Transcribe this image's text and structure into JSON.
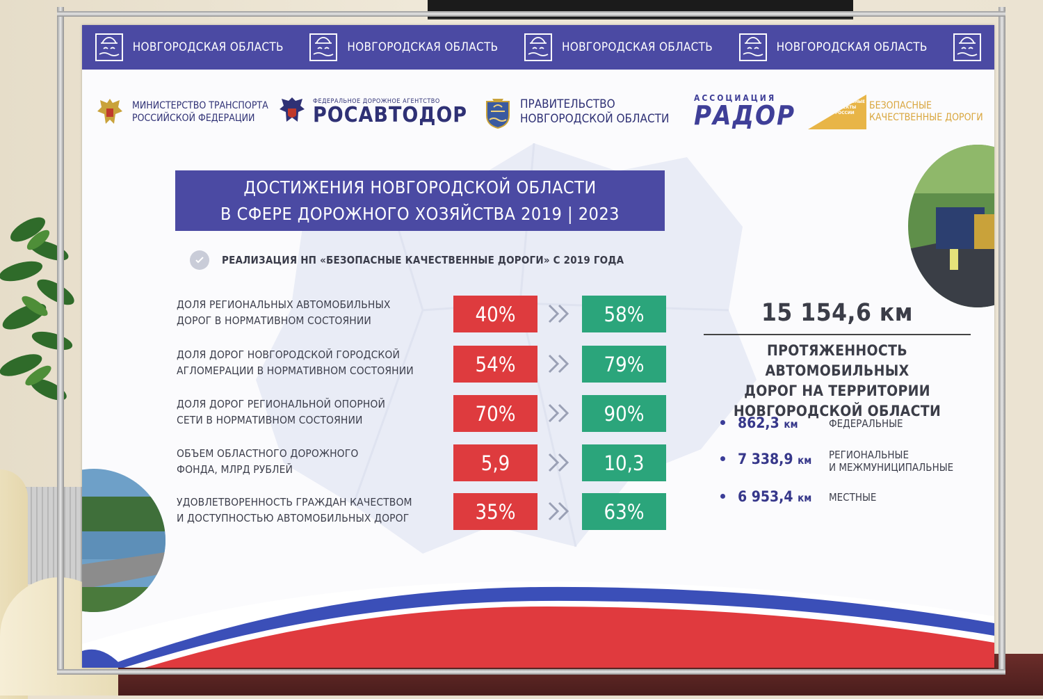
{
  "header": {
    "region_label": "НОВГОРОДСКАЯ ОБЛАСТЬ",
    "repeats": [
      1,
      2,
      3,
      4
    ]
  },
  "logos": {
    "ministry_line1": "МИНИСТЕРСТВО ТРАНСПОРТА",
    "ministry_line2": "РОССИЙСКОЙ ФЕДЕРАЦИИ",
    "rosavtodor_small": "ФЕДЕРАЛЬНОЕ ДОРОЖНОЕ АГЕНТСТВО",
    "rosavtodor_big": "РОСАВТОДОР",
    "government_line1": "ПРАВИТЕЛЬСТВО",
    "government_line2": "НОВГОРОДСКОЙ ОБЛАСТИ",
    "rador_small": "АССОЦИАЦИЯ",
    "rador_big": "РАДОР",
    "np_badge_line1": "НАЦИОНАЛЬНЫЕ",
    "np_badge_line2": "ПРОЕКТЫ",
    "np_badge_line3": "РОССИИ",
    "bkd_line1": "БЕЗОПАСНЫЕ",
    "bkd_line2": "КАЧЕСТВЕННЫЕ ДОРОГИ"
  },
  "title": {
    "line1": "ДОСТИЖЕНИЯ НОВГОРОДСКОЙ ОБЛАСТИ",
    "line2": "В СФЕРЕ ДОРОЖНОГО ХОЗЯЙСТВА 2019 | 2023"
  },
  "subtitle": "РЕАЛИЗАЦИЯ НП «БЕЗОПАСНЫЕ КАЧЕСТВЕННЫЕ ДОРОГИ» С 2019 ГОДА",
  "rows": [
    {
      "line1": "ДОЛЯ РЕГИОНАЛЬНЫХ АВТОМОБИЛЬНЫХ",
      "line2": "ДОРОГ В НОРМАТИВНОМ СОСТОЯНИИ",
      "before": "40%",
      "after": "58%"
    },
    {
      "line1": "ДОЛЯ ДОРОГ НОВГОРОДСКОЙ ГОРОДСКОЙ",
      "line2": "АГЛОМЕРАЦИИ В НОРМАТИВНОМ СОСТОЯНИИ",
      "before": "54%",
      "after": "79%"
    },
    {
      "line1": "ДОЛЯ ДОРОГ РЕГИОНАЛЬНОЙ ОПОРНОЙ",
      "line2": "СЕТИ В НОРМАТИВНОМ СОСТОЯНИИ",
      "before": "70%",
      "after": "90%"
    },
    {
      "line1": "ОБЪЕМ ОБЛАСТНОГО ДОРОЖНОГО",
      "line2": "ФОНДА, МЛРД РУБЛЕЙ",
      "before": "5,9",
      "after": "10,3"
    },
    {
      "line1": "УДОВЛЕТВОРЕННОСТЬ ГРАЖДАН КАЧЕСТВОМ",
      "line2": "И ДОСТУПНОСТЬЮ АВТОМОБИЛЬНЫХ ДОРОГ",
      "before": "35%",
      "after": "63%"
    }
  ],
  "total": {
    "value": "15 154,6 км",
    "desc_line1": "ПРОТЯЖЕННОСТЬ АВТОМОБИЛЬНЫХ",
    "desc_line2": "ДОРОГ НА ТЕРРИТОРИИ",
    "desc_line3": "НОВГОРОДСКОЙ ОБЛАСТИ"
  },
  "breakdown": [
    {
      "value": "862,3",
      "unit": "км",
      "label_line1": "ФЕДЕРАЛЬНЫЕ",
      "label_line2": ""
    },
    {
      "value": "7 338,9",
      "unit": "км",
      "label_line1": "РЕГИОНАЛЬНЫЕ",
      "label_line2": "И МЕЖМУНИЦИПАЛЬНЫЕ"
    },
    {
      "value": "6 953,4",
      "unit": "км",
      "label_line1": "МЕСТНЫЕ",
      "label_line2": ""
    }
  ],
  "colors": {
    "brand_blue": "#4b4aa3",
    "before_red": "#de3b3e",
    "after_green": "#2ba57b",
    "bkd_gold": "#e8b547"
  },
  "icons": {
    "header": "novgorod-emblem-icon",
    "ministry": "double-headed-eagle-icon",
    "rosavtodor": "eagle-shield-icon",
    "government": "novgorod-coat-of-arms-icon",
    "subtitle": "check-circle-icon",
    "arrows": "double-chevron-right-icon"
  }
}
